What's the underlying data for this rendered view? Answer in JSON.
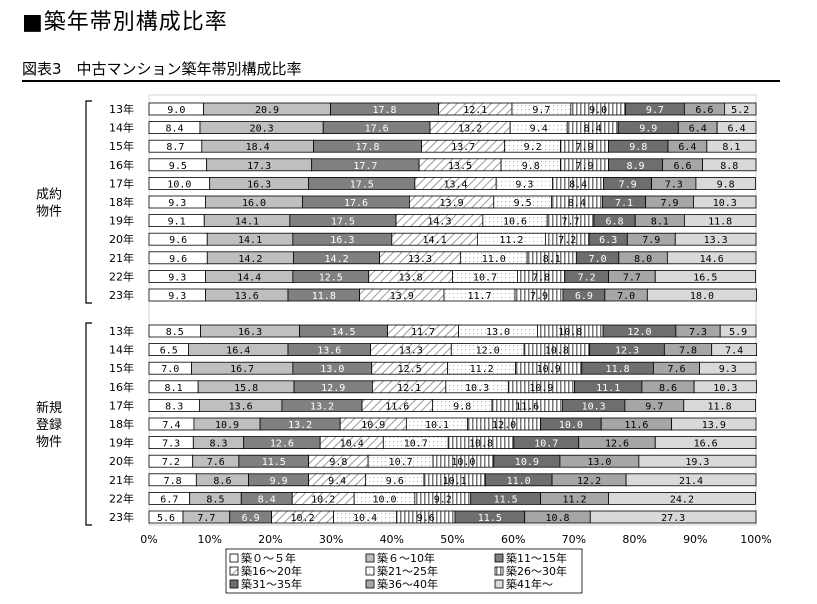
{
  "page_title": "■築年帯別構成比率",
  "figure_caption": "図表3　中古マンション築年帯別構成比率",
  "chart_data": {
    "type": "bar",
    "orientation": "horizontal",
    "stacked": "100%",
    "title": "図表3　中古マンション築年帯別構成比率",
    "xlim": [
      0,
      100
    ],
    "x_ticks": [
      "0%",
      "10%",
      "20%",
      "30%",
      "40%",
      "50%",
      "60%",
      "70%",
      "80%",
      "90%",
      "100%"
    ],
    "legend_position": "bottom",
    "series": [
      {
        "name": "築０～５年",
        "color": "#ffffff"
      },
      {
        "name": "築６～10年",
        "color": "#bfbfbf"
      },
      {
        "name": "築11～15年",
        "color": "#808080"
      },
      {
        "name": "築16～20年",
        "color": "hatch-diagonal"
      },
      {
        "name": "築21～25年",
        "color": "#ffffff-dotted"
      },
      {
        "name": "築26～30年",
        "color": "vertical-stripes"
      },
      {
        "name": "築31～35年",
        "color": "#6e6e6e"
      },
      {
        "name": "築36～40年",
        "color": "#a6a6a6"
      },
      {
        "name": "築41年～",
        "color": "#d9d9d9"
      }
    ],
    "groups": [
      {
        "name": "成約物件",
        "rows": [
          {
            "year": "13年",
            "values": [
              9.0,
              20.9,
              17.8,
              12.1,
              9.7,
              9.0,
              9.7,
              6.6,
              5.2
            ]
          },
          {
            "year": "14年",
            "values": [
              8.4,
              20.3,
              17.6,
              13.2,
              9.4,
              8.4,
              9.9,
              6.4,
              6.4
            ]
          },
          {
            "year": "15年",
            "values": [
              8.7,
              18.4,
              17.8,
              13.7,
              9.2,
              7.9,
              9.8,
              6.4,
              8.1
            ]
          },
          {
            "year": "16年",
            "values": [
              9.5,
              17.3,
              17.7,
              13.5,
              9.8,
              7.9,
              8.9,
              6.6,
              8.8
            ]
          },
          {
            "year": "17年",
            "values": [
              10.0,
              16.3,
              17.5,
              13.4,
              9.3,
              8.4,
              7.9,
              7.3,
              9.8
            ]
          },
          {
            "year": "18年",
            "values": [
              9.3,
              16.0,
              17.6,
              13.9,
              9.5,
              8.4,
              7.1,
              7.9,
              10.3
            ]
          },
          {
            "year": "19年",
            "values": [
              9.1,
              14.1,
              17.5,
              14.3,
              10.6,
              7.7,
              6.8,
              8.1,
              11.8
            ]
          },
          {
            "year": "20年",
            "values": [
              9.6,
              14.1,
              16.3,
              14.1,
              11.2,
              7.2,
              6.3,
              7.9,
              13.3
            ]
          },
          {
            "year": "21年",
            "values": [
              9.6,
              14.2,
              14.2,
              13.3,
              11.0,
              8.1,
              7.0,
              8.0,
              14.6
            ]
          },
          {
            "year": "22年",
            "values": [
              9.3,
              14.4,
              12.5,
              13.8,
              10.7,
              7.8,
              7.2,
              7.7,
              16.5
            ]
          },
          {
            "year": "23年",
            "values": [
              9.3,
              13.6,
              11.8,
              13.9,
              11.7,
              7.9,
              6.9,
              7.0,
              18.0
            ]
          }
        ]
      },
      {
        "name": "新規登録物件",
        "rows": [
          {
            "year": "13年",
            "values": [
              8.5,
              16.3,
              14.5,
              11.7,
              13.0,
              10.8,
              12.0,
              7.3,
              5.9
            ]
          },
          {
            "year": "14年",
            "values": [
              6.5,
              16.4,
              13.6,
              13.3,
              12.0,
              10.8,
              12.3,
              7.8,
              7.4
            ]
          },
          {
            "year": "15年",
            "values": [
              7.0,
              16.7,
              13.0,
              12.5,
              11.2,
              10.9,
              11.8,
              7.6,
              9.3
            ]
          },
          {
            "year": "16年",
            "values": [
              8.1,
              15.8,
              12.9,
              12.1,
              10.3,
              10.9,
              11.1,
              8.6,
              10.3
            ]
          },
          {
            "year": "17年",
            "values": [
              8.3,
              13.6,
              13.2,
              11.6,
              9.8,
              11.6,
              10.3,
              9.7,
              11.8
            ]
          },
          {
            "year": "18年",
            "values": [
              7.4,
              10.9,
              13.2,
              10.9,
              10.1,
              12.0,
              10.0,
              11.6,
              13.9
            ]
          },
          {
            "year": "19年",
            "values": [
              7.3,
              8.3,
              12.6,
              10.4,
              10.7,
              10.8,
              10.7,
              12.6,
              16.6
            ]
          },
          {
            "year": "20年",
            "values": [
              7.2,
              7.6,
              11.5,
              9.8,
              10.7,
              10.0,
              10.9,
              13.0,
              19.3
            ]
          },
          {
            "year": "21年",
            "values": [
              7.8,
              8.6,
              9.9,
              9.4,
              9.6,
              10.1,
              11.0,
              12.2,
              21.4
            ]
          },
          {
            "year": "22年",
            "values": [
              6.7,
              8.5,
              8.4,
              10.2,
              10.0,
              9.2,
              11.5,
              11.2,
              24.2
            ]
          },
          {
            "year": "23年",
            "values": [
              5.6,
              7.7,
              6.9,
              10.2,
              10.4,
              9.6,
              11.5,
              10.8,
              27.3
            ]
          }
        ]
      }
    ]
  }
}
